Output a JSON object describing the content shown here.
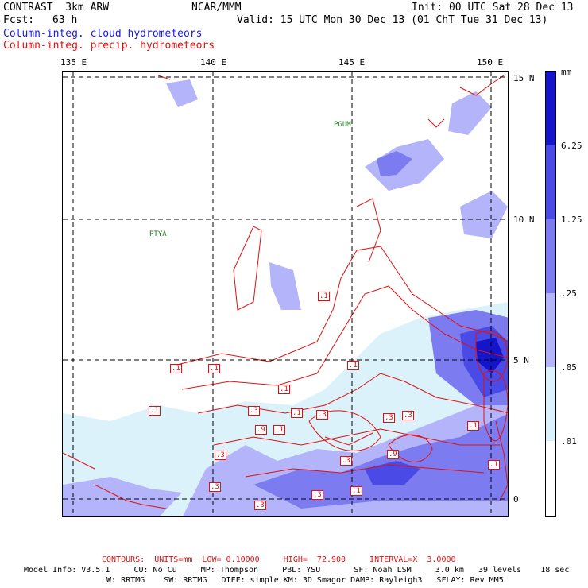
{
  "header": {
    "model": "CONTRAST  3km ARW",
    "org": "NCAR/MMM",
    "init": "Init: 00 UTC Sat 28 Dec 13",
    "fcst_label": "Fcst:",
    "fcst_value": "63 h",
    "valid": "Valid: 15 UTC Mon 30 Dec 13 (01 ChT Tue 31 Dec 13)",
    "field_cloud": "Column-integ. cloud hydrometeors",
    "field_precip": "Column-integ. precip. hydrometeors"
  },
  "axes": {
    "lon_labels": [
      "135 E",
      "140 E",
      "145 E",
      "150 E"
    ],
    "lat_labels": [
      "15 N",
      "10 N",
      "5 N",
      "0"
    ]
  },
  "places": [
    "PGUM",
    "PTYA"
  ],
  "contour_labels": [
    ".1",
    ".1",
    ".1",
    ".1",
    ".1",
    ".1",
    ".3",
    ".1",
    ".3",
    ".9",
    ".1",
    ".3",
    ".3",
    ".1",
    ".3",
    ".3",
    ".1",
    ".3",
    ".3",
    ".3",
    ".1",
    ".9",
    ".9",
    ".1",
    ".1"
  ],
  "colorbar": {
    "unit": "mm",
    "labels": [
      "6.25",
      "1.25",
      ".25",
      ".05",
      ".01"
    ],
    "colors": [
      "#1414c8",
      "#4a4ae6",
      "#7c7cf0",
      "#b4b4fa",
      "#dcf2fa",
      "#ffffff"
    ]
  },
  "footer": {
    "contours": "CONTOURS:  UNITS=mm  LOW= 0.10000     HIGH=  72.900     INTERVAL=X  3.0000",
    "model_info": "Model Info: V3.5.1     CU: No Cu     MP: Thompson     PBL: YSU       SF: Noah LSM     3.0 km   39 levels    18 sec",
    "model_info2": "LW: RRTMG    SW: RRTMG   DIFF: simple KM: 3D Smagor DAMP: Rayleigh3   SFLAY: Rev MM5"
  }
}
